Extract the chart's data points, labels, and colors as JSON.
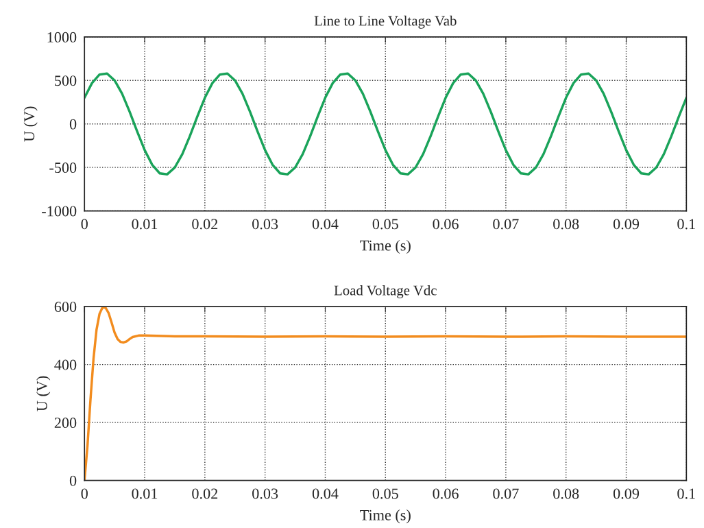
{
  "chart_data": [
    {
      "type": "line",
      "title": "Line to Line Voltage Vab",
      "xlabel": "Time (s)",
      "ylabel": "U (V)",
      "xlim": [
        0,
        0.1
      ],
      "xticks": [
        0,
        0.01,
        0.02,
        0.03,
        0.04,
        0.05,
        0.06,
        0.07,
        0.08,
        0.09,
        {
          "value": 0.1,
          "label": "0.1"
        }
      ],
      "ylim": [
        -1000,
        1000
      ],
      "yticks": [
        -1000,
        -500,
        0,
        500,
        1000
      ],
      "grid": true,
      "line_style": "solid",
      "series": [
        {
          "color": "#1aa35a",
          "x": [
            0,
            0.00125,
            0.0025,
            0.00375,
            0.005,
            0.00625,
            0.0075,
            0.00875,
            0.01,
            0.01125,
            0.0125,
            0.01375,
            0.015,
            0.01625,
            0.0175,
            0.01875,
            0.02,
            0.02125,
            0.0225,
            0.02375,
            0.025,
            0.02625,
            0.0275,
            0.02875,
            0.03,
            0.03125,
            0.0325,
            0.03375,
            0.035,
            0.03625,
            0.0375,
            0.03875,
            0.04,
            0.04125,
            0.0425,
            0.04375,
            0.045,
            0.04625,
            0.0475,
            0.04875,
            0.05,
            0.05125,
            0.0525,
            0.05375,
            0.055,
            0.05625,
            0.0575,
            0.05875,
            0.06,
            0.06125,
            0.0625,
            0.06375,
            0.065,
            0.06625,
            0.0675,
            0.06875,
            0.07,
            0.07125,
            0.0725,
            0.07375,
            0.075,
            0.07625,
            0.0775,
            0.07875,
            0.08,
            0.08125,
            0.0825,
            0.08375,
            0.085,
            0.08625,
            0.0875,
            0.08875,
            0.09,
            0.09125,
            0.0925,
            0.09375,
            0.095,
            0.09625,
            0.0975,
            0.09875,
            0.1
          ],
          "values": [
            301,
            470,
            568,
            579,
            501,
            348,
            141,
            -86,
            -301,
            -470,
            -568,
            -579,
            -501,
            -348,
            -141,
            86,
            301,
            470,
            568,
            579,
            501,
            348,
            141,
            -86,
            -301,
            -470,
            -568,
            -579,
            -501,
            -348,
            -141,
            86,
            301,
            470,
            568,
            579,
            501,
            348,
            141,
            -86,
            -301,
            -470,
            -568,
            -579,
            -501,
            -348,
            -141,
            86,
            301,
            470,
            568,
            579,
            501,
            348,
            141,
            -86,
            -301,
            -470,
            -568,
            -579,
            -501,
            -348,
            -141,
            86,
            301,
            470,
            568,
            579,
            501,
            348,
            141,
            -86,
            -301,
            -470,
            -568,
            -579,
            -501,
            -348,
            -141,
            86,
            301
          ]
        }
      ]
    },
    {
      "type": "line",
      "title": "Load Voltage Vdc",
      "xlabel": "Time (s)",
      "ylabel": "U (V)",
      "xlim": [
        0,
        0.1
      ],
      "xticks": [
        0,
        0.01,
        0.02,
        0.03,
        0.04,
        0.05,
        0.06,
        0.07,
        0.08,
        0.09,
        {
          "value": 0.1,
          "label": "0.1"
        }
      ],
      "ylim": [
        0,
        600
      ],
      "yticks": [
        0,
        200,
        400,
        600
      ],
      "grid": true,
      "line_style": "solid",
      "series": [
        {
          "color": "#f28c1e",
          "x": [
            0,
            0.0005,
            0.001,
            0.0015,
            0.002,
            0.0025,
            0.003,
            0.0035,
            0.004,
            0.0045,
            0.005,
            0.0055,
            0.006,
            0.0065,
            0.007,
            0.0075,
            0.008,
            0.009,
            0.01,
            0.015,
            0.02,
            0.03,
            0.04,
            0.05,
            0.06,
            0.07,
            0.08,
            0.09,
            0.1
          ],
          "values": [
            0,
            120,
            280,
            420,
            520,
            575,
            597,
            596,
            578,
            545,
            510,
            488,
            478,
            476,
            480,
            488,
            495,
            500,
            500,
            497,
            497,
            496,
            497,
            496,
            497,
            496,
            497,
            496,
            496
          ]
        }
      ]
    }
  ]
}
